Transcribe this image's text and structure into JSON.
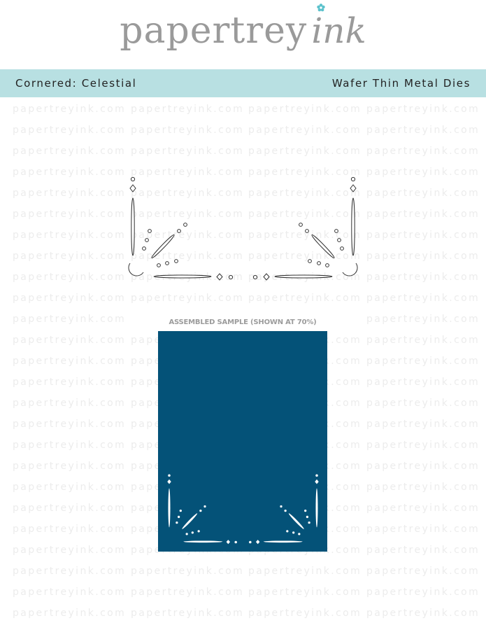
{
  "logo": {
    "text_main": "papertrey",
    "text_accent": "ink"
  },
  "header": {
    "product_name": "Cornered: Celestial",
    "product_type": "Wafer Thin Metal Dies"
  },
  "watermark": "papertreyink.com",
  "sample": {
    "label": "ASSEMBLED SAMPLE (SHOWN AT 70%)",
    "panel_color": "#045278"
  },
  "colors": {
    "band": "#b8e0e2",
    "logo": "#9a9a9a",
    "logo_accent": "#5cc2cc"
  }
}
